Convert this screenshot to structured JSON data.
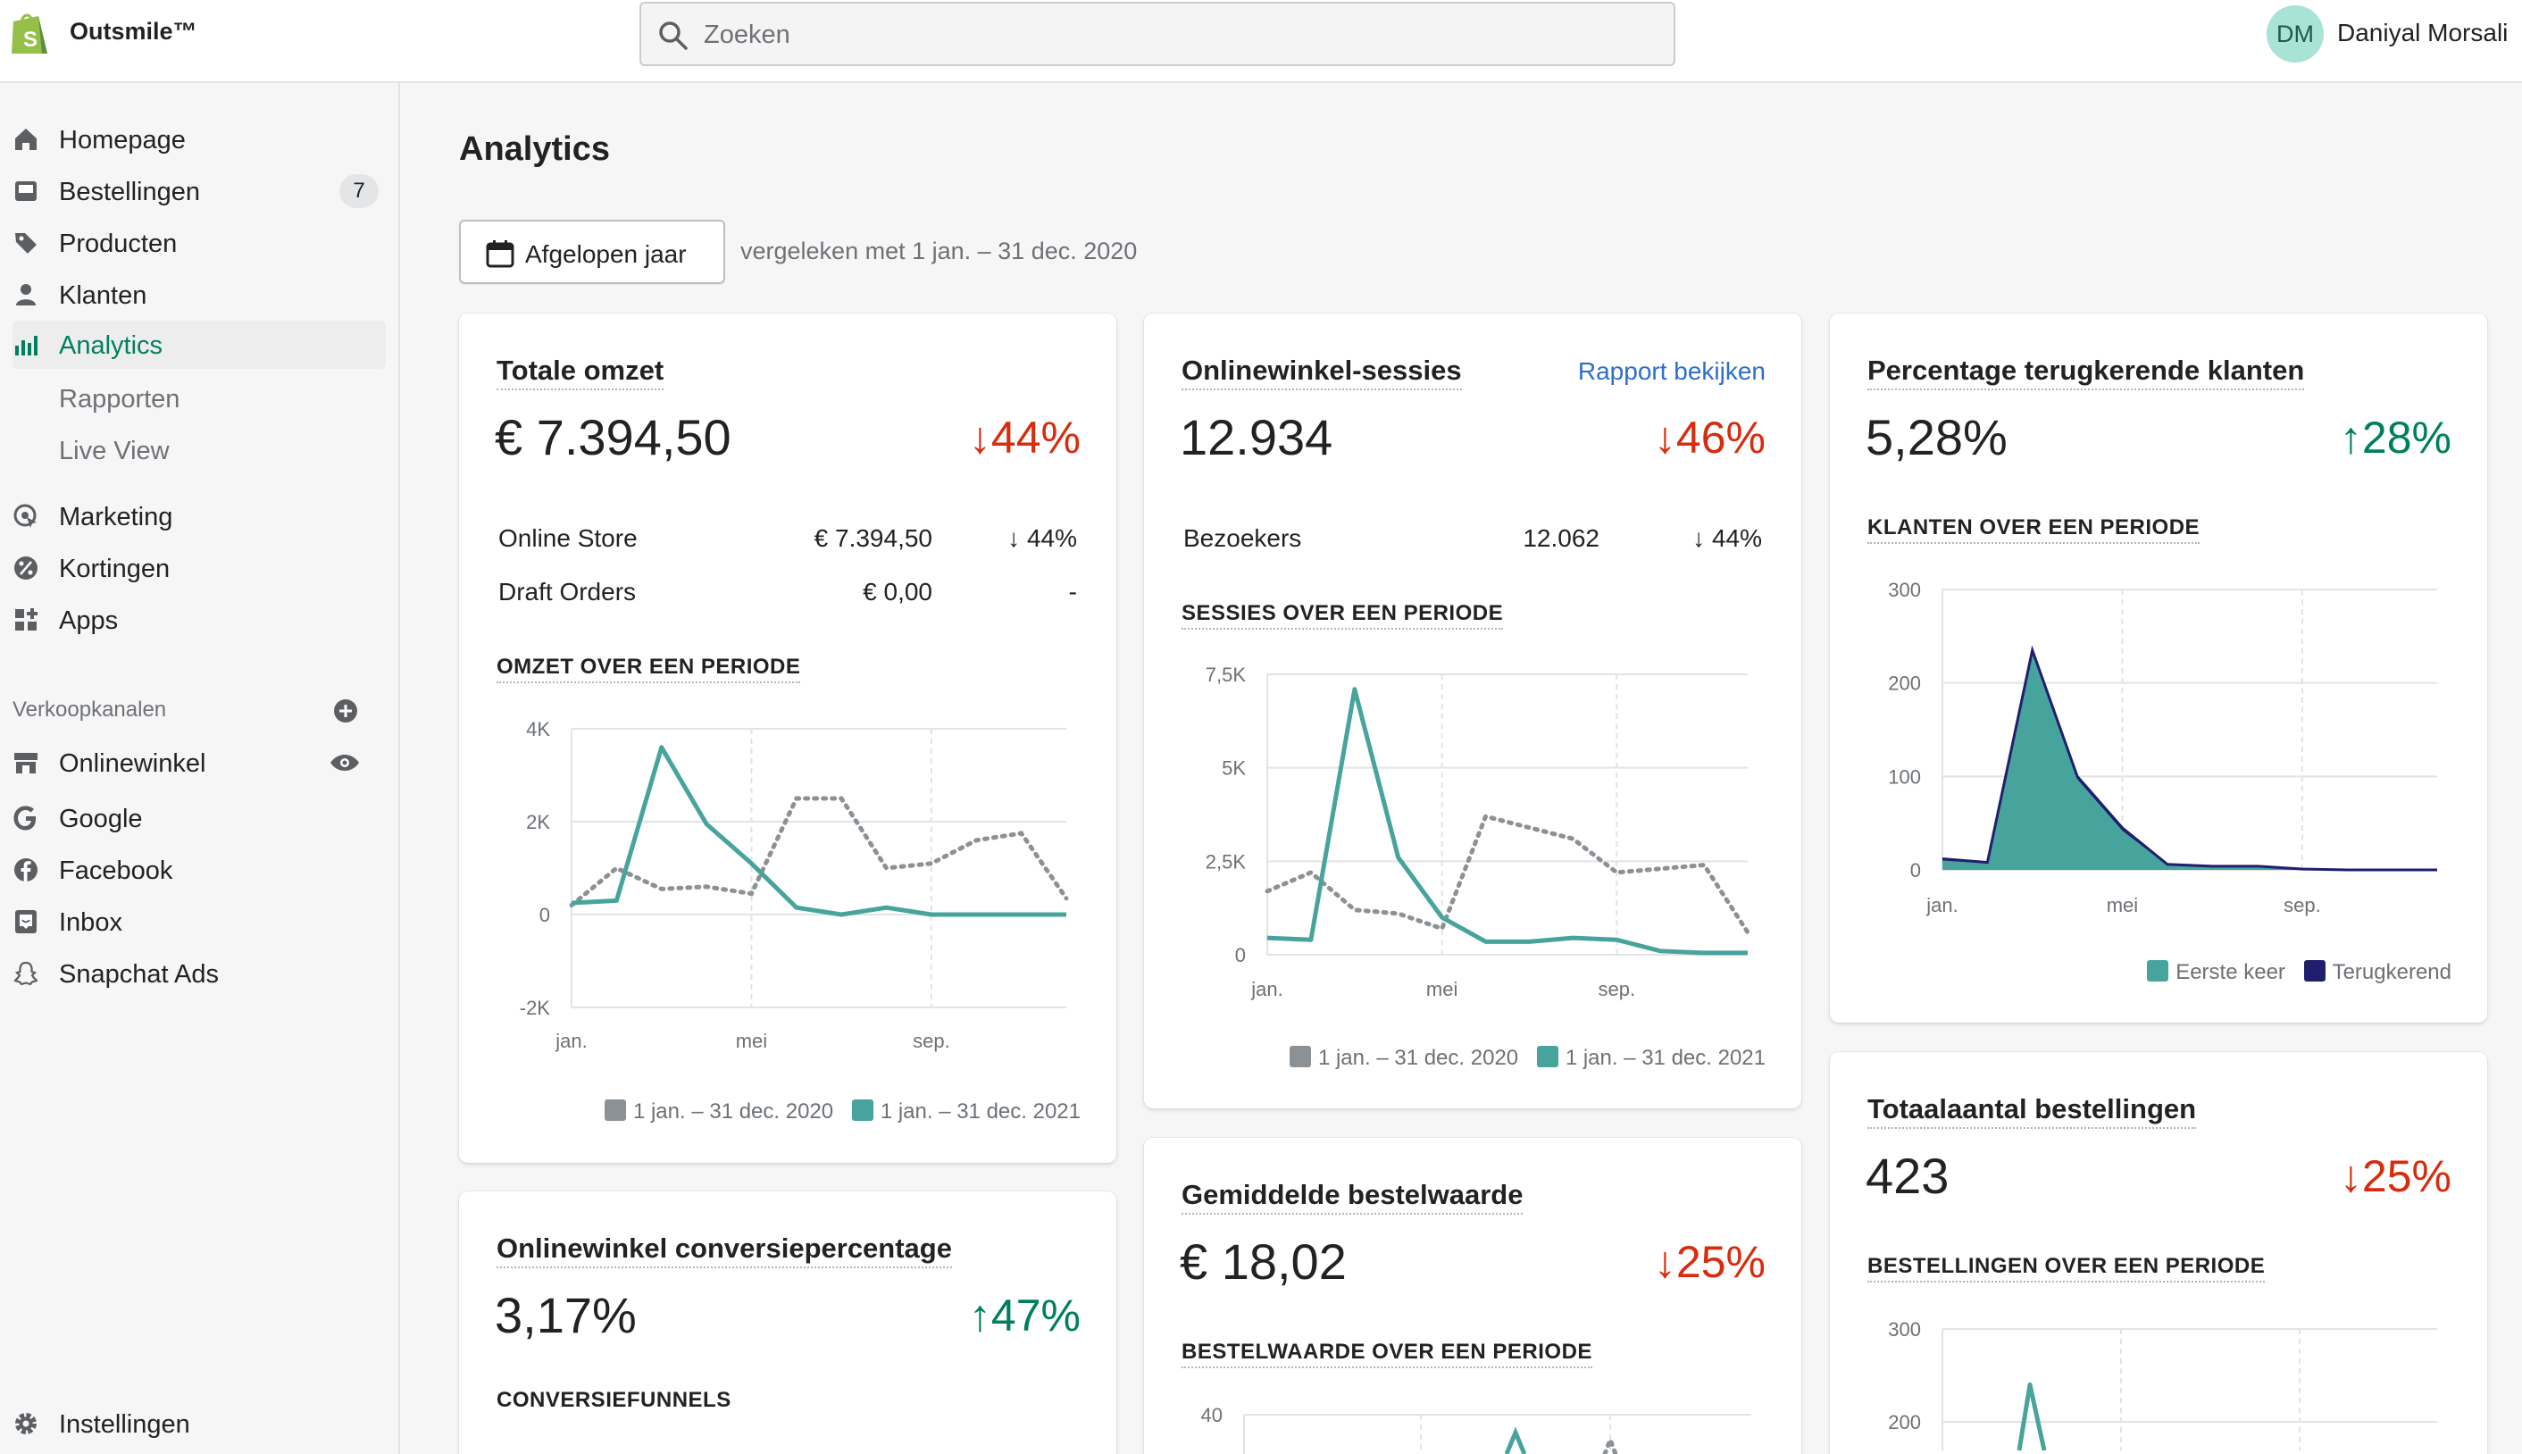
{
  "topbar": {
    "store_name": "Outsmile™",
    "search_placeholder": "Zoeken",
    "user_initials": "DM",
    "user_name": "Daniyal Morsali"
  },
  "sidebar": {
    "items": [
      {
        "label": "Homepage"
      },
      {
        "label": "Bestellingen",
        "badge": "7"
      },
      {
        "label": "Producten"
      },
      {
        "label": "Klanten"
      },
      {
        "label": "Analytics"
      },
      {
        "label": "Rapporten"
      },
      {
        "label": "Live View"
      },
      {
        "label": "Marketing"
      },
      {
        "label": "Kortingen"
      },
      {
        "label": "Apps"
      }
    ],
    "channels_title": "Verkoopkanalen",
    "channels": [
      {
        "label": "Onlinewinkel"
      },
      {
        "label": "Google"
      },
      {
        "label": "Facebook"
      },
      {
        "label": "Inbox"
      },
      {
        "label": "Snapchat Ads"
      }
    ],
    "settings_label": "Instellingen"
  },
  "header": {
    "title": "Analytics",
    "date_button": "Afgelopen jaar",
    "compare": "vergeleken met 1 jan. – 31 dec. 2020"
  },
  "legend": {
    "prev": "1 jan. – 31 dec. 2020",
    "curr": "1 jan. – 31 dec. 2021"
  },
  "colors": {
    "current": "#47a49c",
    "previous": "#8c9196",
    "down": "#d72c0d",
    "up": "#007f5f",
    "returning": "#1f1f6e"
  },
  "cards": {
    "revenue": {
      "title": "Totale omzet",
      "value": "€ 7.394,50",
      "change": "↓44%",
      "rows": [
        {
          "label": "Online Store",
          "value": "€ 7.394,50",
          "change": "↓ 44%"
        },
        {
          "label": "Draft Orders",
          "value": "€ 0,00",
          "change": "-"
        }
      ],
      "chart_title": "OMZET OVER EEN PERIODE"
    },
    "sessions": {
      "title": "Onlinewinkel-sessies",
      "link": "Rapport bekijken",
      "value": "12.934",
      "change": "↓46%",
      "rows": [
        {
          "label": "Bezoekers",
          "value": "12.062",
          "change": "↓ 44%"
        }
      ],
      "chart_title": "SESSIES OVER EEN PERIODE"
    },
    "returning": {
      "title": "Percentage terugkerende klanten",
      "value": "5,28%",
      "change": "↑28%",
      "chart_title": "KLANTEN OVER EEN PERIODE",
      "legend_first": "Eerste keer",
      "legend_returning": "Terugkerend"
    },
    "conversion": {
      "title": "Onlinewinkel conversiepercentage",
      "value": "3,17%",
      "change": "↑47%",
      "funnel_title": "CONVERSIEFUNNELS"
    },
    "aov": {
      "title": "Gemiddelde bestelwaarde",
      "value": "€ 18,02",
      "change": "↓25%",
      "chart_title": "BESTELWAARDE OVER EEN PERIODE"
    },
    "orders": {
      "title": "Totaalaantal bestellingen",
      "value": "423",
      "change": "↓25%",
      "chart_title": "BESTELLINGEN OVER EEN PERIODE"
    }
  },
  "chart_data": [
    {
      "type": "line",
      "name": "revenue",
      "x": [
        "jan.",
        "feb.",
        "mrt.",
        "apr.",
        "mei",
        "jun.",
        "jul.",
        "aug.",
        "sep.",
        "okt.",
        "nov.",
        "dec."
      ],
      "x_tick_labels": [
        "jan.",
        "mei",
        "sep."
      ],
      "y_tick_labels": [
        "4K",
        "2K",
        "0",
        "-2K"
      ],
      "ylim": [
        -2000,
        4000
      ],
      "series": [
        {
          "values": [
            200,
            1000,
            550,
            600,
            450,
            2500,
            2500,
            1000,
            1100,
            1600,
            1750,
            350
          ]
        },
        {
          "values": [
            250,
            300,
            3600,
            1950,
            1100,
            150,
            0,
            150,
            0,
            0,
            0,
            0
          ]
        }
      ]
    },
    {
      "type": "line",
      "name": "sessions",
      "x": [
        "jan.",
        "feb.",
        "mrt.",
        "apr.",
        "mei",
        "jun.",
        "jul.",
        "aug.",
        "sep.",
        "okt.",
        "nov.",
        "dec."
      ],
      "x_tick_labels": [
        "jan.",
        "mei",
        "sep."
      ],
      "y_tick_labels": [
        "7,5K",
        "5K",
        "2,5K",
        "0"
      ],
      "ylim": [
        0,
        7500
      ],
      "series": [
        {
          "values": [
            1700,
            2200,
            1200,
            1100,
            700,
            3700,
            3400,
            3100,
            2200,
            2300,
            2400,
            600
          ]
        },
        {
          "values": [
            450,
            400,
            7100,
            2600,
            1000,
            350,
            350,
            450,
            400,
            100,
            50,
            50
          ]
        }
      ]
    },
    {
      "type": "area",
      "name": "returning-customers",
      "x": [
        "jan.",
        "feb.",
        "mrt.",
        "apr.",
        "mei",
        "jun.",
        "jul.",
        "aug.",
        "sep.",
        "okt.",
        "nov.",
        "dec."
      ],
      "x_tick_labels": [
        "jan.",
        "mei",
        "sep."
      ],
      "y_tick_labels": [
        "300",
        "200",
        "100",
        "0"
      ],
      "ylim": [
        0,
        300
      ],
      "series": [
        {
          "values": [
            10,
            7,
            232,
            97,
            42,
            5,
            3,
            3,
            0,
            0,
            0,
            0
          ]
        },
        {
          "values": [
            12,
            8,
            235,
            100,
            45,
            6,
            4,
            4,
            1,
            0,
            0,
            0
          ]
        }
      ]
    },
    {
      "type": "line",
      "name": "aov",
      "y_tick_labels": [
        "40"
      ],
      "ylim": [
        0,
        40
      ]
    },
    {
      "type": "line",
      "name": "orders",
      "y_tick_labels": [
        "300",
        "200"
      ],
      "ylim": [
        0,
        300
      ],
      "series": [
        {
          "values": [
            null,
            null,
            240
          ]
        }
      ]
    }
  ]
}
